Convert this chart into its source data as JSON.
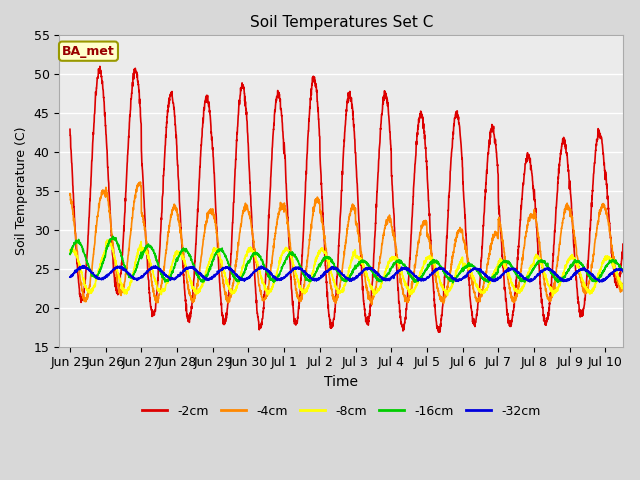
{
  "title": "Soil Temperatures Set C",
  "xlabel": "Time",
  "ylabel": "Soil Temperature (C)",
  "ylim": [
    15,
    55
  ],
  "background_color": "#d8d8d8",
  "plot_bg_color": "#ebebeb",
  "grid_color": "#ffffff",
  "annotation_text": "BA_met",
  "annotation_box_color": "#ffffcc",
  "annotation_text_color": "#990000",
  "annotation_border_color": "#999900",
  "tick_labels": [
    "Jun 25",
    "Jun 26",
    "Jun 27",
    "Jun 28",
    "Jun 29",
    "Jun 30",
    "Jul 1",
    "Jul 2",
    "Jul 3",
    "Jul 4",
    "Jul 5",
    "Jul 6",
    "Jul 7",
    "Jul 8",
    "Jul 9",
    "Jul 10"
  ],
  "tick_positions": [
    0,
    1,
    2,
    3,
    4,
    5,
    6,
    7,
    8,
    9,
    10,
    11,
    12,
    13,
    14,
    15
  ],
  "yticks": [
    15,
    20,
    25,
    30,
    35,
    40,
    45,
    50,
    55
  ],
  "series_colors": [
    "#dd0000",
    "#ff8800",
    "#ffff00",
    "#00cc00",
    "#0000dd"
  ],
  "series_labels": [
    "-2cm",
    "-4cm",
    "-8cm",
    "-16cm",
    "-32cm"
  ],
  "legend_fontsize": 9,
  "title_fontsize": 11,
  "axis_fontsize": 9,
  "linewidth": 1.2
}
